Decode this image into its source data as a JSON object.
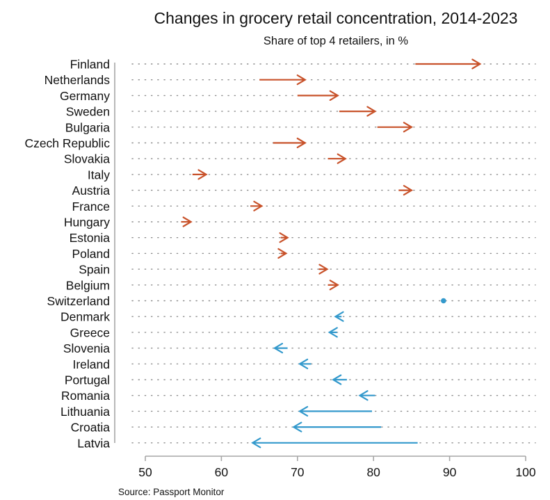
{
  "chart_data": {
    "type": "arrow",
    "title": "Changes in grocery retail concentration, 2014-2023",
    "subtitle": "Share of top 4 retailers, in %",
    "source": "Source: Passport Monitor",
    "xlim": [
      50,
      100
    ],
    "xticks": [
      50,
      60,
      70,
      80,
      90,
      100
    ],
    "grid": "dotted horizontal",
    "colors": {
      "increase": "#c8522a",
      "decrease": "#3399cc",
      "unchanged": "#3399cc"
    },
    "rows": [
      {
        "label": "Finland",
        "from": 85.5,
        "to": 94
      },
      {
        "label": "Netherlands",
        "from": 65,
        "to": 71
      },
      {
        "label": "Germany",
        "from": 70,
        "to": 75.3
      },
      {
        "label": "Sweden",
        "from": 75.5,
        "to": 80.2
      },
      {
        "label": "Bulgaria",
        "from": 80.5,
        "to": 85
      },
      {
        "label": "Czech Republic",
        "from": 66.8,
        "to": 71
      },
      {
        "label": "Slovakia",
        "from": 74,
        "to": 76.3
      },
      {
        "label": "Italy",
        "from": 56.2,
        "to": 58
      },
      {
        "label": "Austria",
        "from": 83.3,
        "to": 85
      },
      {
        "label": "France",
        "from": 63.8,
        "to": 65.3
      },
      {
        "label": "Hungary",
        "from": 54.7,
        "to": 56
      },
      {
        "label": "Estonia",
        "from": 67.8,
        "to": 68.7
      },
      {
        "label": "Poland",
        "from": 67.8,
        "to": 68.5
      },
      {
        "label": "Spain",
        "from": 72.8,
        "to": 73.9
      },
      {
        "label": "Belgium",
        "from": 74,
        "to": 75.3
      },
      {
        "label": "Switzerland",
        "from": 89.2,
        "to": 89.2
      },
      {
        "label": "Denmark",
        "from": 75.8,
        "to": 75
      },
      {
        "label": "Greece",
        "from": 75.2,
        "to": 74.2
      },
      {
        "label": "Slovenia",
        "from": 68.7,
        "to": 67
      },
      {
        "label": "Ireland",
        "from": 71.8,
        "to": 70.3
      },
      {
        "label": "Portugal",
        "from": 76.5,
        "to": 74.7
      },
      {
        "label": "Romania",
        "from": 80.2,
        "to": 78.2
      },
      {
        "label": "Lithuania",
        "from": 79.8,
        "to": 70.3
      },
      {
        "label": "Croatia",
        "from": 81,
        "to": 69.5
      },
      {
        "label": "Latvia",
        "from": 85.8,
        "to": 64.1
      }
    ]
  }
}
